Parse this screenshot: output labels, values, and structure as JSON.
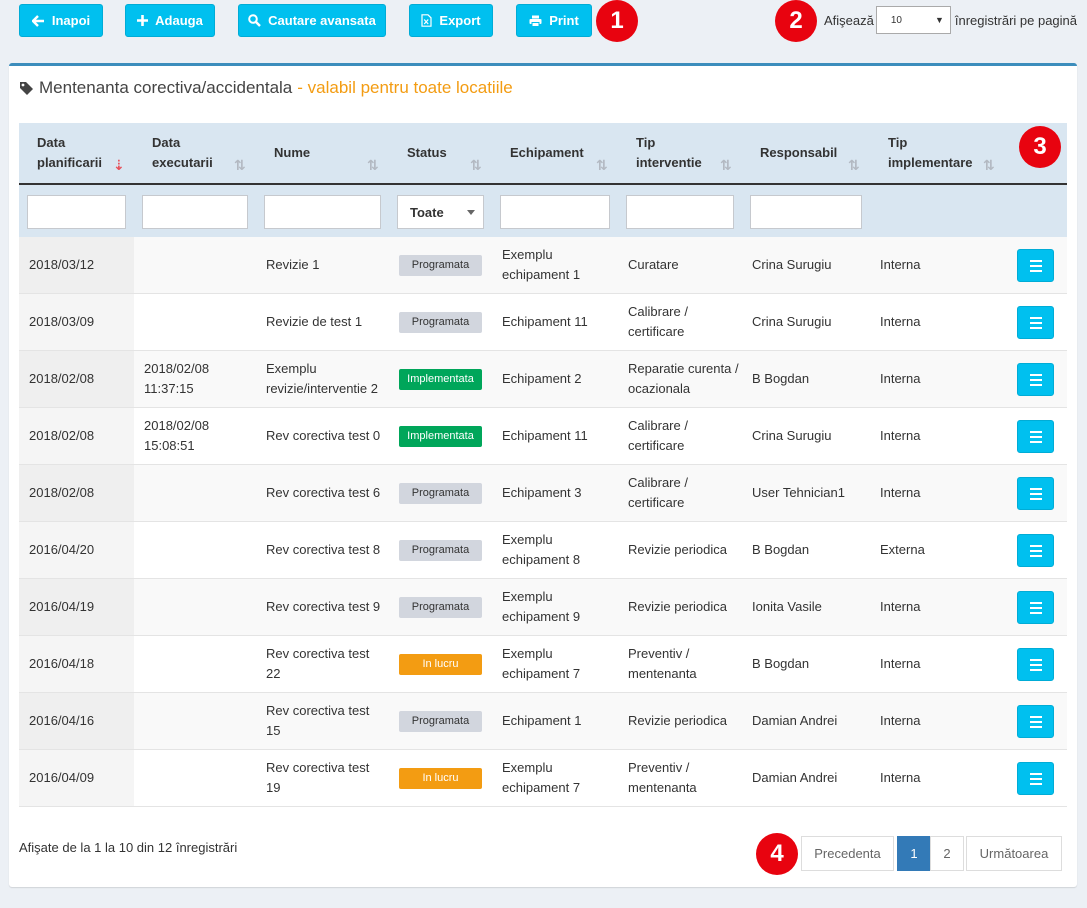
{
  "toolbar": {
    "back": "Inapoi",
    "add": "Adauga",
    "search": "Cautare avansata",
    "export": "Export",
    "print": "Print"
  },
  "markers": [
    "1",
    "2",
    "3",
    "4"
  ],
  "perpage": {
    "label": "Afişează",
    "value": "10",
    "suffix": "înregistrări pe pagină"
  },
  "panel": {
    "title": "Mentenanta corectiva/accidentala",
    "subtitle": "- valabil pentru toate locatiile"
  },
  "columns": [
    "Data planificarii",
    "Data executarii",
    "Nume",
    "Status",
    "Echipament",
    "Tip interventie",
    "Responsabil",
    "Tip implementare"
  ],
  "filters": {
    "status_selected": "Toate"
  },
  "rows": [
    {
      "date_plan": "2018/03/12",
      "date_exec": "",
      "name": "Revizie 1",
      "status": "Programata",
      "status_kind": "sched",
      "equipment": "Exemplu echipament 1",
      "intervention": "Curatare",
      "responsible": "Crina Surugiu",
      "impl": "Interna"
    },
    {
      "date_plan": "2018/03/09",
      "date_exec": "",
      "name": "Revizie de test 1",
      "status": "Programata",
      "status_kind": "sched",
      "equipment": "Echipament 11",
      "intervention": "Calibrare / certificare",
      "responsible": "Crina Surugiu",
      "impl": "Interna"
    },
    {
      "date_plan": "2018/02/08",
      "date_exec": "2018/02/08 11:37:15",
      "name": "Exemplu revizie/interventie 2",
      "status": "Implementata",
      "status_kind": "impl",
      "equipment": "Echipament 2",
      "intervention": "Reparatie curenta / ocazionala",
      "responsible": "B Bogdan",
      "impl": "Interna"
    },
    {
      "date_plan": "2018/02/08",
      "date_exec": "2018/02/08 15:08:51",
      "name": "Rev corectiva test 0",
      "status": "Implementata",
      "status_kind": "impl",
      "equipment": "Echipament 11",
      "intervention": "Calibrare / certificare",
      "responsible": "Crina Surugiu",
      "impl": "Interna"
    },
    {
      "date_plan": "2018/02/08",
      "date_exec": "",
      "name": "Rev corectiva test 6",
      "status": "Programata",
      "status_kind": "sched",
      "equipment": "Echipament 3",
      "intervention": "Calibrare / certificare",
      "responsible": "User Tehnician1",
      "impl": "Interna"
    },
    {
      "date_plan": "2016/04/20",
      "date_exec": "",
      "name": "Rev corectiva test 8",
      "status": "Programata",
      "status_kind": "sched",
      "equipment": "Exemplu echipament 8",
      "intervention": "Revizie periodica",
      "responsible": "B Bogdan",
      "impl": "Externa"
    },
    {
      "date_plan": "2016/04/19",
      "date_exec": "",
      "name": "Rev corectiva test 9",
      "status": "Programata",
      "status_kind": "sched",
      "equipment": "Exemplu echipament 9",
      "intervention": "Revizie periodica",
      "responsible": "Ionita Vasile",
      "impl": "Interna"
    },
    {
      "date_plan": "2016/04/18",
      "date_exec": "",
      "name": "Rev corectiva test 22",
      "status": "In lucru",
      "status_kind": "work",
      "equipment": "Exemplu echipament 7",
      "intervention": "Preventiv / mentenanta",
      "responsible": "B Bogdan",
      "impl": "Interna"
    },
    {
      "date_plan": "2016/04/16",
      "date_exec": "",
      "name": "Rev corectiva test 15",
      "status": "Programata",
      "status_kind": "sched",
      "equipment": "Echipament 1",
      "intervention": "Revizie periodica",
      "responsible": "Damian Andrei",
      "impl": "Interna"
    },
    {
      "date_plan": "2016/04/09",
      "date_exec": "",
      "name": "Rev corectiva test 19",
      "status": "In lucru",
      "status_kind": "work",
      "equipment": "Exemplu echipament 7",
      "intervention": "Preventiv / mentenanta",
      "responsible": "Damian Andrei",
      "impl": "Interna"
    }
  ],
  "info": "Afişate de la 1 la 10 din 12 înregistrări",
  "pagination": {
    "prev": "Precedenta",
    "pages": [
      "1",
      "2"
    ],
    "current": "1",
    "next": "Următoarea"
  }
}
